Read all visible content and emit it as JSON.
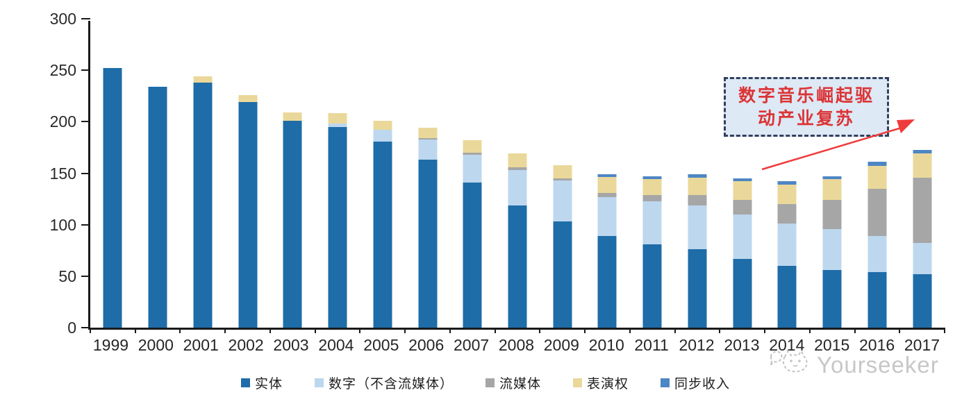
{
  "chart_data": {
    "type": "bar",
    "subtype": "stacked-column",
    "title": "",
    "xlabel": "",
    "ylabel": "",
    "ylim": [
      0,
      300
    ],
    "yticks": [
      0,
      50,
      100,
      150,
      200,
      250,
      300
    ],
    "grid": false,
    "legend_position": "bottom",
    "categories": [
      "1999",
      "2000",
      "2001",
      "2002",
      "2003",
      "2004",
      "2005",
      "2006",
      "2007",
      "2008",
      "2009",
      "2010",
      "2011",
      "2012",
      "2013",
      "2014",
      "2015",
      "2016",
      "2017"
    ],
    "series": [
      {
        "name": "实体",
        "color": "#1e6ca8",
        "values": [
          252,
          234,
          238,
          219,
          201,
          195,
          181,
          163,
          141,
          119,
          103,
          89,
          81,
          76,
          67,
          60,
          56,
          54,
          52
        ]
      },
      {
        "name": "数字（不含流媒体）",
        "color": "#bdd7ee",
        "values": [
          0,
          0,
          0,
          0,
          0,
          3,
          11,
          20,
          27,
          34,
          40,
          38,
          42,
          43,
          43,
          41,
          40,
          35,
          30
        ]
      },
      {
        "name": "流媒体",
        "color": "#a6a6a6",
        "values": [
          0,
          0,
          0,
          0,
          0,
          0,
          0,
          1,
          2,
          3,
          2,
          4,
          6,
          10,
          14,
          19,
          28,
          46,
          64
        ]
      },
      {
        "name": "表演权",
        "color": "#ead89a",
        "values": [
          0,
          0,
          6,
          7,
          8,
          10,
          9,
          10,
          12,
          13,
          13,
          15,
          15,
          17,
          18,
          19,
          20,
          22,
          23
        ]
      },
      {
        "name": "同步收入",
        "color": "#4d86c4",
        "values": [
          0,
          0,
          0,
          0,
          0,
          0,
          0,
          0,
          0,
          0,
          0,
          3,
          3,
          3,
          3,
          3,
          3,
          4,
          4
        ]
      }
    ]
  },
  "annotation": {
    "line1": "数字音乐崛起驱",
    "line2": "动产业复苏",
    "text_color": "#dc3436",
    "box_fill": "#dde9f5",
    "box_border": "#32405e",
    "arrow_color": "#ef3b3b"
  },
  "watermark": {
    "text": "Yourseeker",
    "color": "#c7c7c7"
  }
}
